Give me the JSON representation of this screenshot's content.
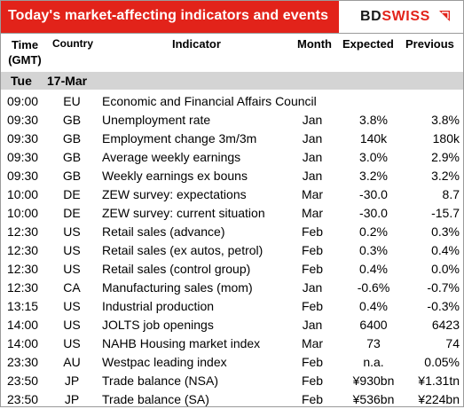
{
  "title": "Today's market-affecting indicators and events",
  "logo": {
    "part1": "BD",
    "part2": "SWISS",
    "mark_icon": "swiss-arrow-logo-icon"
  },
  "headers": {
    "time_line1": "Time",
    "time_line2": "(GMT)",
    "country": "Country",
    "indicator": "Indicator",
    "month": "Month",
    "expected": "Expected",
    "previous": "Previous"
  },
  "day": {
    "weekday": "Tue",
    "date": "17-Mar"
  },
  "rows": [
    {
      "time": "09:00",
      "country": "EU",
      "indicator": "Economic and Financial Affairs Council",
      "month": "",
      "expected": "",
      "previous": ""
    },
    {
      "time": "09:30",
      "country": "GB",
      "indicator": "Unemployment rate",
      "month": "Jan",
      "expected": "3.8%",
      "previous": "3.8%"
    },
    {
      "time": "09:30",
      "country": "GB",
      "indicator": "Employment change 3m/3m",
      "month": "Jan",
      "expected": "140k",
      "previous": "180k"
    },
    {
      "time": "09:30",
      "country": "GB",
      "indicator": "Average weekly earnings",
      "month": "Jan",
      "expected": "3.0%",
      "previous": "2.9%"
    },
    {
      "time": "09:30",
      "country": "GB",
      "indicator": "Weekly earnings ex bouns",
      "month": "Jan",
      "expected": "3.2%",
      "previous": "3.2%"
    },
    {
      "time": "10:00",
      "country": "DE",
      "indicator": "ZEW survey: expectations",
      "month": "Mar",
      "expected": "-30.0",
      "previous": "8.7"
    },
    {
      "time": "10:00",
      "country": "DE",
      "indicator": "ZEW survey: current situation",
      "month": "Mar",
      "expected": "-30.0",
      "previous": "-15.7"
    },
    {
      "time": "12:30",
      "country": "US",
      "indicator": "Retail sales (advance)",
      "month": "Feb",
      "expected": "0.2%",
      "previous": "0.3%"
    },
    {
      "time": "12:30",
      "country": "US",
      "indicator": "Retail sales (ex autos, petrol)",
      "month": "Feb",
      "expected": "0.3%",
      "previous": "0.4%"
    },
    {
      "time": "12:30",
      "country": "US",
      "indicator": "Retail sales (control group)",
      "month": "Feb",
      "expected": "0.4%",
      "previous": "0.0%"
    },
    {
      "time": "12:30",
      "country": "CA",
      "indicator": "Manufacturing sales (mom)",
      "month": "Jan",
      "expected": "-0.6%",
      "previous": "-0.7%"
    },
    {
      "time": "13:15",
      "country": "US",
      "indicator": "Industrial production",
      "month": "Feb",
      "expected": "0.4%",
      "previous": "-0.3%"
    },
    {
      "time": "14:00",
      "country": "US",
      "indicator": "JOLTS job openings",
      "month": "Jan",
      "expected": "6400",
      "previous": "6423"
    },
    {
      "time": "14:00",
      "country": "US",
      "indicator": "NAHB Housing market index",
      "month": "Mar",
      "expected": "73",
      "previous": "74"
    },
    {
      "time": "23:30",
      "country": "AU",
      "indicator": "Westpac leading index",
      "month": "Feb",
      "expected": "n.a.",
      "previous": "0.05%"
    },
    {
      "time": "23:50",
      "country": "JP",
      "indicator": "Trade balance (NSA)",
      "month": "Feb",
      "expected": "¥930bn",
      "previous": "¥1.31tn"
    },
    {
      "time": "23:50",
      "country": "JP",
      "indicator": "Trade balance (SA)",
      "month": "Feb",
      "expected": "¥536bn",
      "previous": "¥224bn"
    }
  ],
  "colors": {
    "brand_red": "#e2231a",
    "day_row_gray": "#d4d4d4"
  }
}
